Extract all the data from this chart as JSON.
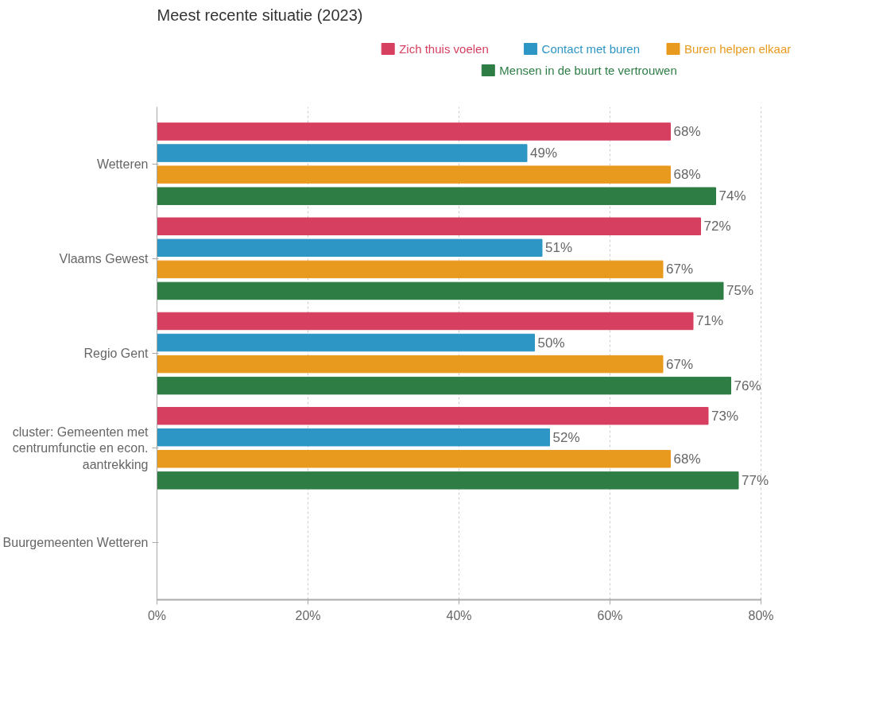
{
  "chart_data": {
    "type": "bar",
    "orientation": "horizontal",
    "title": "Meest recente situatie (2023)",
    "categories": [
      "Wetteren",
      "Vlaams Gewest",
      "Regio Gent",
      "cluster: Gemeenten met centrumfunctie en econ. aantrekking",
      "Buurgemeenten Wetteren"
    ],
    "series": [
      {
        "name": "Zich thuis voelen",
        "color": "#d63f5f",
        "values": [
          68,
          72,
          71,
          73,
          null
        ],
        "value_labels": [
          "68%",
          "72%",
          "71%",
          "73%",
          null
        ]
      },
      {
        "name": "Contact met buren",
        "color": "#2e96c4",
        "values": [
          49,
          51,
          50,
          52,
          null
        ],
        "value_labels": [
          "49%",
          "51%",
          "50%",
          "52%",
          null
        ]
      },
      {
        "name": "Buren helpen elkaar",
        "color": "#e89a1f",
        "values": [
          68,
          67,
          67,
          68,
          null
        ],
        "value_labels": [
          "68%",
          "67%",
          "67%",
          "68%",
          null
        ]
      },
      {
        "name": "Mensen in de buurt te vertrouwen",
        "color": "#2e7d45",
        "values": [
          74,
          75,
          76,
          77,
          null
        ],
        "value_labels": [
          "74%",
          "75%",
          "76%",
          "77%",
          null
        ]
      }
    ],
    "xlim": [
      0,
      80
    ],
    "xticks": [
      {
        "value": 0,
        "label": "0%"
      },
      {
        "value": 20,
        "label": "20%"
      },
      {
        "value": 40,
        "label": "40%"
      },
      {
        "value": 60,
        "label": "60%"
      },
      {
        "value": 80,
        "label": "80%"
      }
    ],
    "grid": "x",
    "legend": "top"
  }
}
